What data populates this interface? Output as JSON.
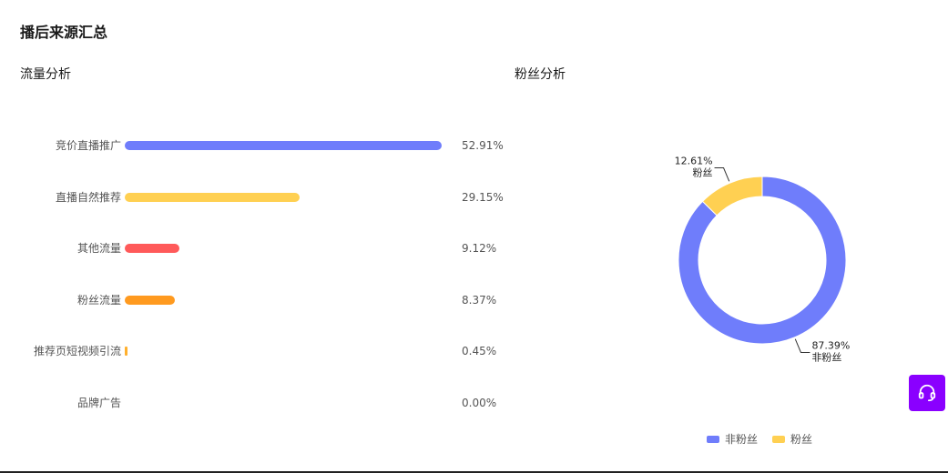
{
  "page_title": "播后来源汇总",
  "traffic_section": {
    "title": "流量分析"
  },
  "fans_section": {
    "title": "粉丝分析"
  },
  "colors": {
    "blue": "#6f7dfb",
    "yellow": "#ffd052",
    "red": "#ff5a5a",
    "orange": "#ff9a1f",
    "purple": "#8a00ff"
  },
  "support_button": {
    "icon": "headset-icon"
  },
  "chart_data": [
    {
      "type": "bar",
      "orientation": "horizontal",
      "title": "流量分析",
      "categories": [
        "竞价直播推广",
        "直播自然推荐",
        "其他流量",
        "粉丝流量",
        "推荐页短视频引流",
        "品牌广告"
      ],
      "values": [
        52.91,
        29.15,
        9.12,
        8.37,
        0.45,
        0.0
      ],
      "value_labels": [
        "52.91%",
        "29.15%",
        "9.12%",
        "8.37%",
        "0.45%",
        "0.00%"
      ],
      "bar_colors": [
        "#6f7dfb",
        "#ffd052",
        "#ff5a5a",
        "#ff9a1f",
        "#ffb02e",
        "#cccccc"
      ],
      "unit": "%"
    },
    {
      "type": "pie",
      "style": "donut",
      "title": "粉丝分析",
      "slices": [
        {
          "label": "非粉丝",
          "value": 87.39,
          "value_label": "87.39%",
          "color": "#6f7dfb"
        },
        {
          "label": "粉丝",
          "value": 12.61,
          "value_label": "12.61%",
          "color": "#ffd052"
        }
      ],
      "legend": [
        "非粉丝",
        "粉丝"
      ],
      "legend_position": "bottom"
    }
  ]
}
